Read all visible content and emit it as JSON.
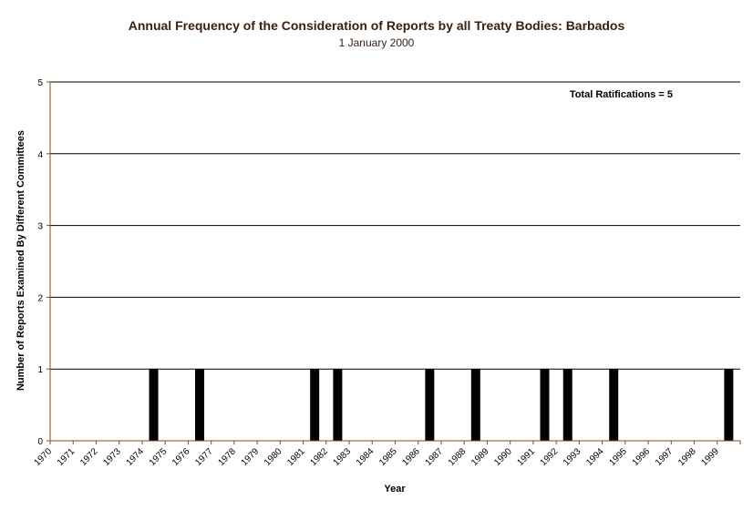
{
  "chart_data": {
    "type": "bar",
    "title": "Annual Frequency of the Consideration of Reports by all Treaty Bodies: Barbados",
    "subtitle": "1 January 2000",
    "xlabel": "Year",
    "ylabel": "Number of Reports Examined By Different Committees",
    "ylim": [
      0,
      5
    ],
    "yticks": [
      "0",
      "1",
      "2",
      "3",
      "4",
      "5"
    ],
    "grid": true,
    "annotation": "Total Ratifications = 5",
    "categories": [
      "1970",
      "1971",
      "1972",
      "1973",
      "1974",
      "1975",
      "1976",
      "1977",
      "1978",
      "1979",
      "1980",
      "1981",
      "1982",
      "1983",
      "1984",
      "1985",
      "1986",
      "1987",
      "1988",
      "1989",
      "1990",
      "1991",
      "1992",
      "1993",
      "1994",
      "1995",
      "1996",
      "1997",
      "1998",
      "1999"
    ],
    "values": [
      0,
      0,
      0,
      0,
      1,
      0,
      1,
      0,
      0,
      0,
      0,
      1,
      1,
      0,
      0,
      0,
      1,
      0,
      1,
      0,
      0,
      1,
      1,
      0,
      1,
      0,
      0,
      0,
      0,
      1
    ],
    "colors": {
      "bar": "#000000",
      "grid": "#000000",
      "axis": "#8b4a1a",
      "title": "#3b1e0d"
    }
  }
}
